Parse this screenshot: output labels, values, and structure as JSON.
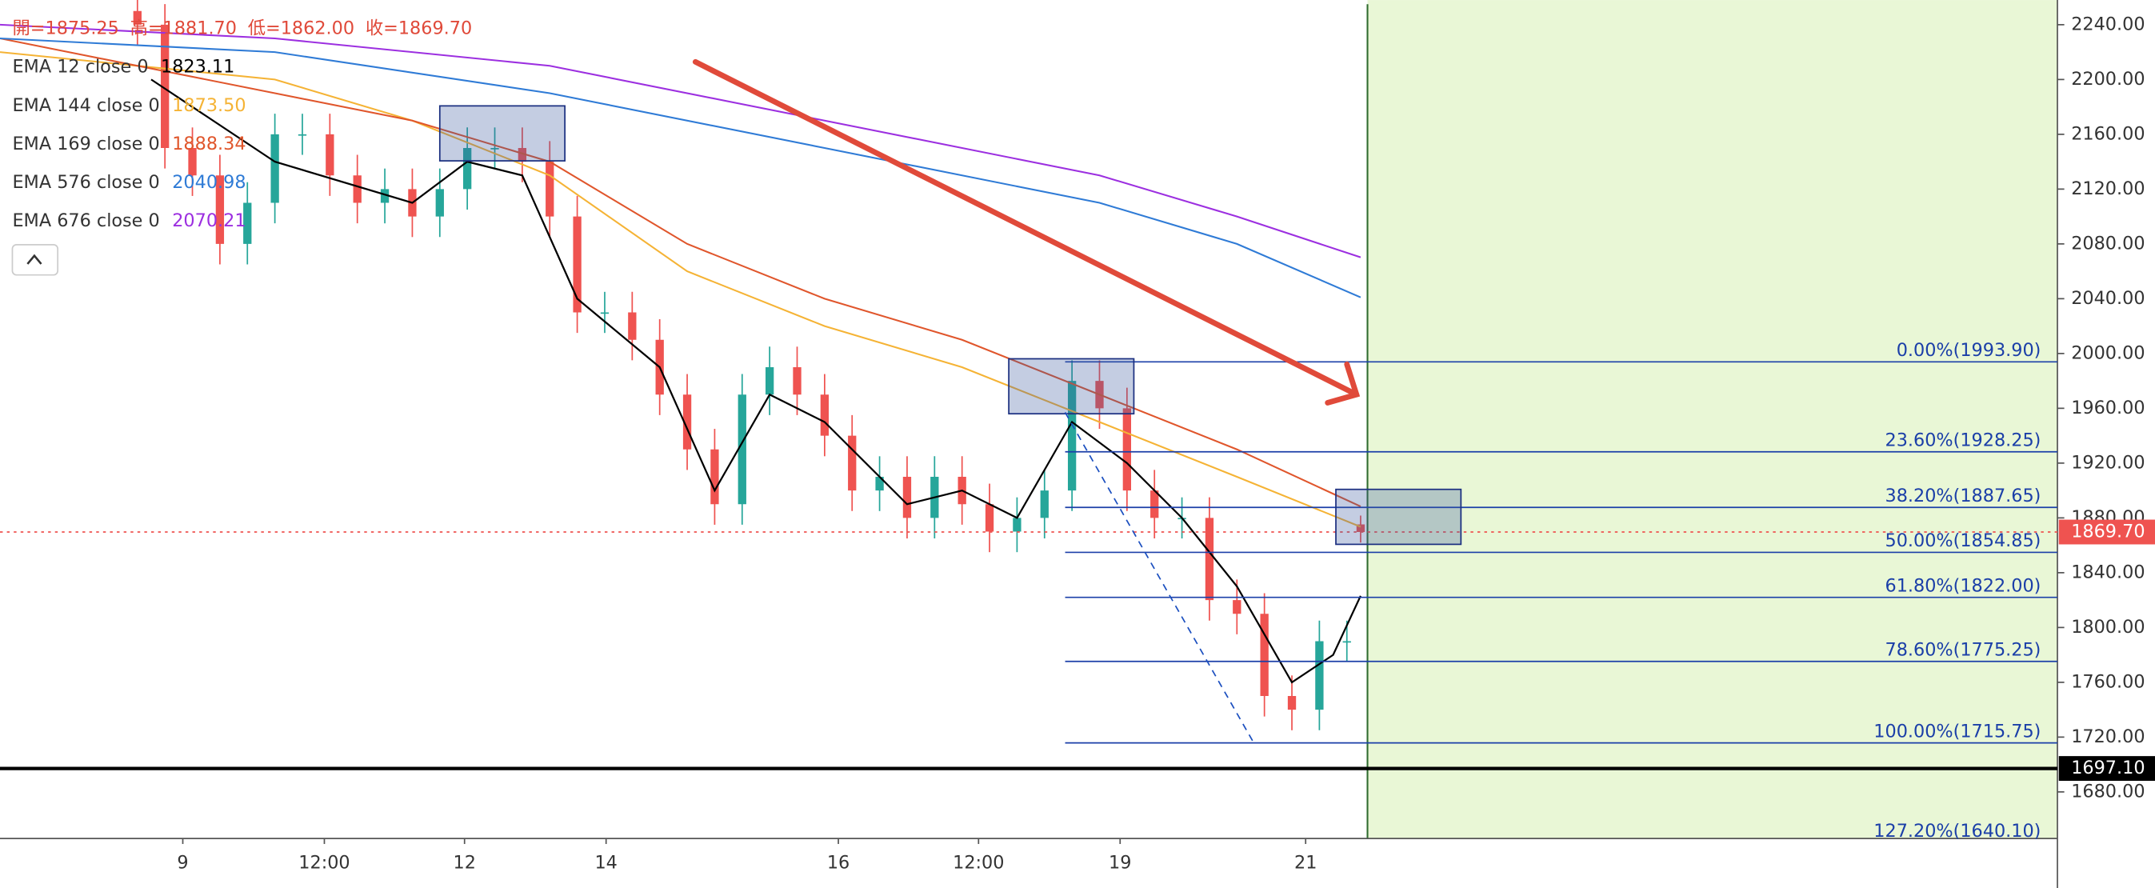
{
  "chart_data": {
    "type": "candlestick",
    "header": [
      "開=1875.25",
      "高=1881.70",
      "低=1862.00",
      "收=1869.70"
    ],
    "x": [
      10,
      12,
      14,
      16,
      18,
      20,
      22,
      24,
      26,
      28,
      30,
      32,
      34,
      36,
      38,
      40,
      42,
      44,
      46,
      48,
      50,
      52,
      54,
      56,
      58,
      60,
      62,
      64,
      66,
      68,
      70,
      72,
      74,
      76,
      78,
      80,
      82,
      84,
      86,
      88,
      90,
      92,
      94,
      96,
      98,
      99
    ],
    "open": [
      2250,
      2240,
      2150,
      2130,
      2080,
      2110,
      2160,
      2160,
      2130,
      2110,
      2120,
      2100,
      2120,
      2150,
      2150,
      2140,
      2100,
      2030,
      2030,
      2010,
      1970,
      1930,
      1890,
      1970,
      1990,
      1970,
      1940,
      1900,
      1910,
      1880,
      1910,
      1890,
      1870,
      1880,
      1900,
      1980,
      1960,
      1900,
      1880,
      1880,
      1820,
      1810,
      1750,
      1740,
      1790,
      1875.25
    ],
    "high": [
      2265,
      2255,
      2165,
      2145,
      2125,
      2175,
      2175,
      2175,
      2145,
      2135,
      2135,
      2135,
      2165,
      2165,
      2165,
      2155,
      2115,
      2045,
      2045,
      2025,
      1985,
      1945,
      1985,
      2005,
      2005,
      1985,
      1955,
      1925,
      1925,
      1925,
      1925,
      1905,
      1895,
      1915,
      1995,
      1995,
      1975,
      1915,
      1895,
      1895,
      1835,
      1825,
      1765,
      1805,
      1805,
      1881.7
    ],
    "low": [
      2225,
      2135,
      2115,
      2065,
      2065,
      2095,
      2145,
      2115,
      2095,
      2095,
      2085,
      2085,
      2105,
      2135,
      2125,
      2085,
      2015,
      2015,
      1995,
      1955,
      1915,
      1875,
      1875,
      1955,
      1955,
      1925,
      1885,
      1885,
      1865,
      1865,
      1875,
      1855,
      1855,
      1865,
      1885,
      1945,
      1885,
      1865,
      1865,
      1805,
      1795,
      1735,
      1725,
      1725,
      1775,
      1862
    ],
    "close": [
      2240,
      2150,
      2130,
      2080,
      2110,
      2160,
      2160,
      2130,
      2110,
      2120,
      2100,
      2120,
      2150,
      2150,
      2140,
      2100,
      2030,
      2030,
      2010,
      1970,
      1930,
      1890,
      1970,
      1990,
      1970,
      1940,
      1900,
      1910,
      1880,
      1910,
      1890,
      1870,
      1880,
      1900,
      1980,
      1960,
      1900,
      1880,
      1880,
      1820,
      1810,
      1750,
      1740,
      1790,
      1790,
      1869.7
    ],
    "up_color": "#26a69a",
    "down_color": "#ef5350",
    "series": [
      {
        "name": "EMA 12 close 0",
        "color": "#000000",
        "x": [
          11,
          20,
          30,
          34,
          38,
          42,
          48,
          52,
          56,
          60,
          66,
          70,
          74,
          78,
          82,
          86,
          90,
          94,
          97,
          99
        ],
        "values": [
          2200,
          2140,
          2110,
          2140,
          2130,
          2040,
          1990,
          1900,
          1970,
          1950,
          1890,
          1900,
          1880,
          1950,
          1920,
          1880,
          1830,
          1760,
          1780,
          1823.11
        ],
        "value_label": "1823.11"
      },
      {
        "name": "EMA 144 close 0",
        "color": "#f5b335",
        "x": [
          0,
          20,
          30,
          40,
          50,
          60,
          70,
          80,
          90,
          99
        ],
        "values": [
          2220,
          2200,
          2170,
          2130,
          2060,
          2020,
          1990,
          1950,
          1910,
          1873.5
        ],
        "value_label": "1873.50"
      },
      {
        "name": "EMA 169 close 0",
        "color": "#e0562c",
        "x": [
          0,
          20,
          30,
          40,
          50,
          60,
          70,
          80,
          90,
          99
        ],
        "values": [
          2230,
          2190,
          2170,
          2140,
          2080,
          2040,
          2010,
          1970,
          1930,
          1888.34
        ],
        "value_label": "1888.34"
      },
      {
        "name": "EMA 576 close 0",
        "color": "#2f7bd6",
        "x": [
          0,
          20,
          40,
          60,
          80,
          90,
          99
        ],
        "values": [
          2230,
          2220,
          2190,
          2150,
          2110,
          2080,
          2040.98
        ],
        "value_label": "2040.98"
      },
      {
        "name": "EMA 676 close 0",
        "color": "#9c2fe0",
        "x": [
          0,
          20,
          40,
          60,
          80,
          90,
          99
        ],
        "values": [
          2240,
          2230,
          2210,
          2170,
          2130,
          2100,
          2070.21
        ],
        "value_label": "2070.21"
      }
    ],
    "fib": [
      {
        "value": 1993.9,
        "label": "0.00%(1993.90)"
      },
      {
        "value": 1928.25,
        "label": "23.60%(1928.25)"
      },
      {
        "value": 1887.65,
        "label": "38.20%(1887.65)"
      },
      {
        "value": 1854.85,
        "label": "50.00%(1854.85)"
      },
      {
        "value": 1822,
        "label": "61.80%(1822.00)"
      },
      {
        "value": 1775.25,
        "label": "78.60%(1775.25)"
      },
      {
        "value": 1715.75,
        "label": "100.00%(1715.75)"
      },
      {
        "value": 1640.1,
        "label": "127.20%(1640.10)"
      }
    ],
    "last_price": {
      "value": 1869.7,
      "label": "1869.70"
    },
    "support": {
      "value": 1697.1,
      "label": "1697.10"
    },
    "xlim": [
      0,
      149.7
    ],
    "ylim": [
      1646,
      2258
    ],
    "yticks": [
      {
        "value": 2240,
        "label": "2240.00"
      },
      {
        "value": 2200,
        "label": "2200.00"
      },
      {
        "value": 2160,
        "label": "2160.00"
      },
      {
        "value": 2120,
        "label": "2120.00"
      },
      {
        "value": 2080,
        "label": "2080.00"
      },
      {
        "value": 2040,
        "label": "2040.00"
      },
      {
        "value": 2000,
        "label": "2000.00"
      },
      {
        "value": 1960,
        "label": "1960.00"
      },
      {
        "value": 1920,
        "label": "1920.00"
      },
      {
        "value": 1880,
        "label": "1880.00"
      },
      {
        "value": 1840,
        "label": "1840.00"
      },
      {
        "value": 1800,
        "label": "1800.00"
      },
      {
        "value": 1760,
        "label": "1760.00"
      },
      {
        "value": 1720,
        "label": "1720.00"
      },
      {
        "value": 1680,
        "label": "1680.00"
      }
    ],
    "xticks": [
      {
        "value": 13.3,
        "label": "9"
      },
      {
        "value": 23.6,
        "label": "12:00"
      },
      {
        "value": 33.8,
        "label": "12"
      },
      {
        "value": 44.1,
        "label": "14"
      },
      {
        "value": 61,
        "label": "16"
      },
      {
        "value": 71.2,
        "label": "12:00"
      },
      {
        "value": 81.5,
        "label": "19"
      },
      {
        "value": 95,
        "label": "21"
      }
    ]
  }
}
